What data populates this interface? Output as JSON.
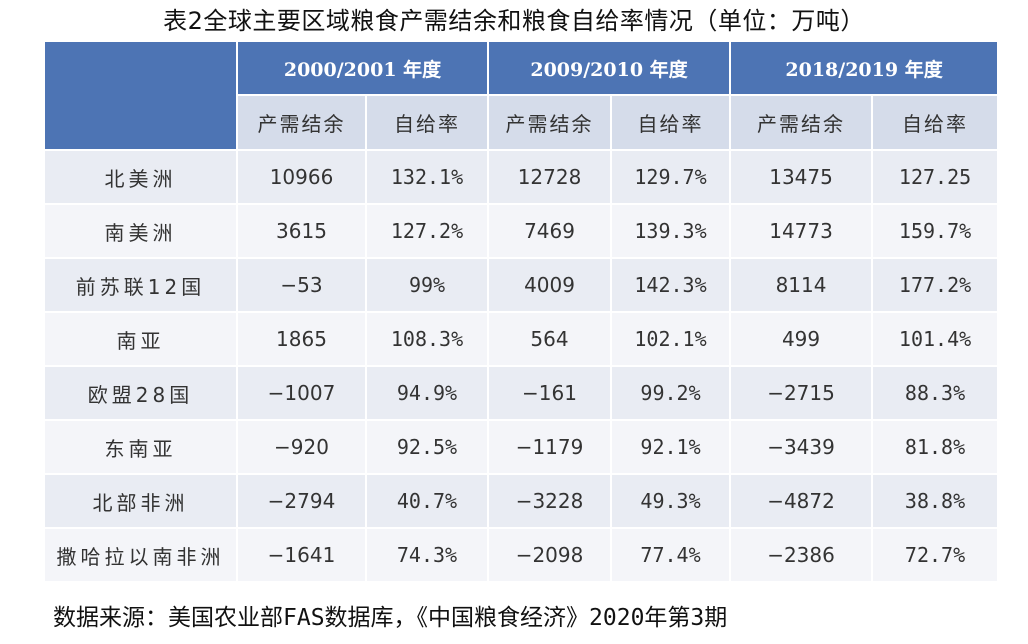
{
  "title": "表2全球主要区域粮食产需结余和粮食自给率情况（单位：万吨）",
  "table": {
    "periods": [
      "2000/2001 年度",
      "2009/2010 年度",
      "2018/2019 年度"
    ],
    "subheaders": [
      "产需结余",
      "自给率",
      "产需结余",
      "自给率",
      "产需结余",
      "自给率"
    ],
    "rows": [
      {
        "region": "北美洲",
        "cells": [
          "10966",
          "132.1%",
          "12728",
          "129.7%",
          "13475",
          "127.25"
        ]
      },
      {
        "region": "南美洲",
        "cells": [
          "3615",
          "127.2%",
          "7469",
          "139.3%",
          "14773",
          "159.7%"
        ]
      },
      {
        "region": "前苏联12国",
        "cells": [
          "−53",
          "99%",
          "4009",
          "142.3%",
          "8114",
          "177.2%"
        ]
      },
      {
        "region": "南亚",
        "cells": [
          "1865",
          "108.3%",
          "564",
          "102.1%",
          "499",
          "101.4%"
        ]
      },
      {
        "region": "欧盟28国",
        "cells": [
          "−1007",
          "94.9%",
          "−161",
          "99.2%",
          "−2715",
          "88.3%"
        ]
      },
      {
        "region": "东南亚",
        "cells": [
          "−920",
          "92.5%",
          "−1179",
          "92.1%",
          "−3439",
          "81.8%"
        ]
      },
      {
        "region": "北部非洲",
        "cells": [
          "−2794",
          "40.7%",
          "−3228",
          "49.3%",
          "−4872",
          "38.8%"
        ]
      },
      {
        "region": "撒哈拉以南非洲",
        "cells": [
          "−1641",
          "74.3%",
          "−2098",
          "77.4%",
          "−2386",
          "72.7%"
        ]
      }
    ]
  },
  "source": "数据来源：美国农业部FAS数据库，《中国粮食经济》2020年第3期",
  "colors": {
    "header_blue": "#4d74b4",
    "subheader_fill": "#d5dcea",
    "row_odd": "#e9ecf3",
    "row_even": "#f4f5f9"
  }
}
